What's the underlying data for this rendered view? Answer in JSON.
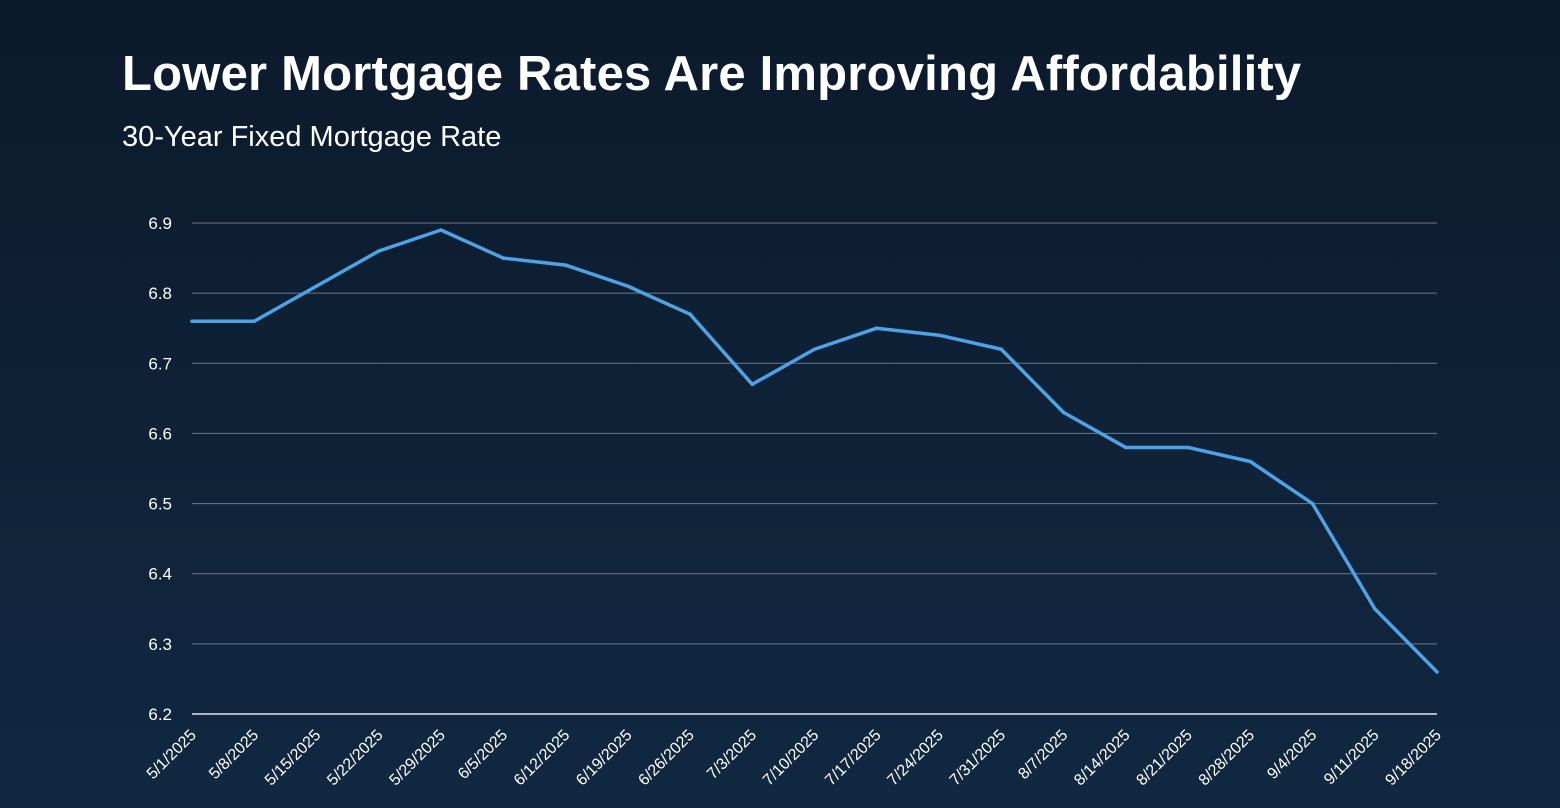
{
  "title": "Lower Mortgage Rates Are Improving Affordability",
  "subtitle": "30-Year Fixed Mortgage Rate",
  "colors": {
    "line": "#4da3e6",
    "gridline": "#8a96a3",
    "axis": "#e6e6e6",
    "text": "#ffffff"
  },
  "chart_data": {
    "type": "line",
    "title": "Lower Mortgage Rates Are Improving Affordability",
    "subtitle": "30-Year Fixed Mortgage Rate",
    "xlabel": "",
    "ylabel": "",
    "ylim": [
      6.2,
      6.9
    ],
    "yticks": [
      "6.2",
      "6.3",
      "6.4",
      "6.5",
      "6.6",
      "6.7",
      "6.8",
      "6.9"
    ],
    "grid": true,
    "categories": [
      "5/1/2025",
      "5/8/2025",
      "5/15/2025",
      "5/22/2025",
      "5/29/2025",
      "6/5/2025",
      "6/12/2025",
      "6/19/2025",
      "6/26/2025",
      "7/3/2025",
      "7/10/2025",
      "7/17/2025",
      "7/24/2025",
      "7/31/2025",
      "8/7/2025",
      "8/14/2025",
      "8/21/2025",
      "8/28/2025",
      "9/4/2025",
      "9/11/2025",
      "9/18/2025"
    ],
    "series": [
      {
        "values": [
          6.76,
          6.76,
          6.81,
          6.86,
          6.89,
          6.85,
          6.84,
          6.81,
          6.77,
          6.67,
          6.72,
          6.75,
          6.74,
          6.72,
          6.63,
          6.58,
          6.58,
          6.56,
          6.5,
          6.35,
          6.26
        ]
      }
    ]
  }
}
